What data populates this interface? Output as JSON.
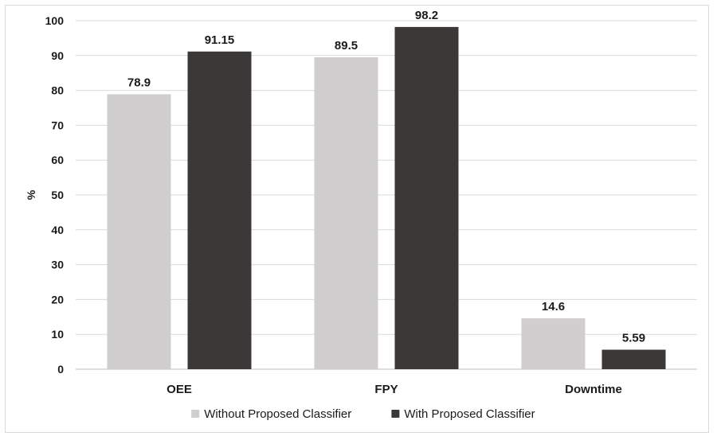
{
  "chart_data": {
    "type": "bar",
    "categories": [
      "OEE",
      "FPY",
      "Downtime"
    ],
    "series": [
      {
        "name": "Without Proposed Classifier",
        "values": [
          78.9,
          89.5,
          14.6
        ],
        "color": "#d0cece",
        "labels": [
          "78.9",
          "89.5",
          "14.6"
        ]
      },
      {
        "name": "With Proposed Classifier",
        "values": [
          91.15,
          98.2,
          5.59
        ],
        "color": "#3b3838",
        "labels": [
          "91.15",
          "98.2",
          "5.59"
        ]
      }
    ],
    "ylabel": "%",
    "xlabel": "",
    "ylim": [
      0,
      100
    ],
    "yticks": [
      0,
      10,
      20,
      30,
      40,
      50,
      60,
      70,
      80,
      90,
      100
    ],
    "grid": true,
    "legend_position": "bottom"
  }
}
